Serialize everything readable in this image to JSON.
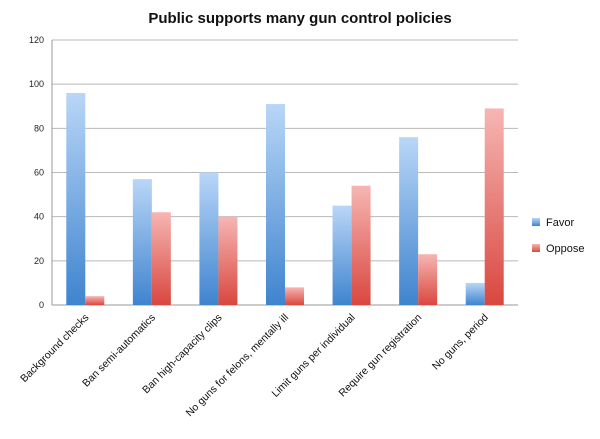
{
  "chart_data": {
    "type": "bar",
    "title": "Public supports many gun control policies",
    "xlabel": "",
    "ylabel": "",
    "ylim": [
      0,
      120
    ],
    "yticks": [
      0,
      20,
      40,
      60,
      80,
      100,
      120
    ],
    "grid": true,
    "legend_position": "right",
    "categories": [
      "Background checks",
      "Ban semi-automatics",
      "Ban high-capacity clips",
      "No guns for felons, mentally ill",
      "Limit guns per individual",
      "Require gun registration",
      "No guns, period"
    ],
    "series": [
      {
        "name": "Favor",
        "values": [
          96,
          57,
          60,
          91,
          45,
          76,
          10
        ],
        "color_top": "#b9d6f7",
        "color_bottom": "#3f84cf"
      },
      {
        "name": "Oppose",
        "values": [
          4,
          42,
          40,
          8,
          54,
          23,
          89
        ],
        "color_top": "#f6b6b3",
        "color_bottom": "#d9473f"
      }
    ]
  }
}
